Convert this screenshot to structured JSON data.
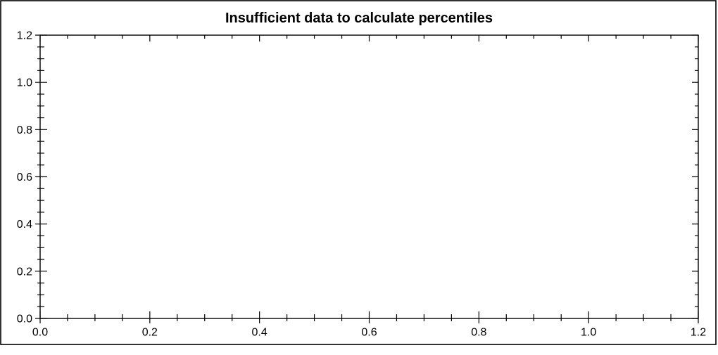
{
  "chart_data": {
    "type": "scatter",
    "title": "Insufficient data to calculate percentiles",
    "series": [],
    "xlabel": "",
    "ylabel": "",
    "xlim": [
      0.0,
      1.2
    ],
    "ylim": [
      0.0,
      1.2
    ],
    "x_major_ticks": [
      0.0,
      0.2,
      0.4,
      0.6,
      0.8,
      1.0,
      1.2
    ],
    "y_major_ticks": [
      0.0,
      0.2,
      0.4,
      0.6,
      0.8,
      1.0,
      1.2
    ],
    "x_tick_labels": [
      "0.0",
      "0.2",
      "0.4",
      "0.6",
      "0.8",
      "1.0",
      "1.2"
    ],
    "y_tick_labels": [
      "0.0",
      "0.2",
      "0.4",
      "0.6",
      "0.8",
      "1.0",
      "1.2"
    ],
    "minor_tick_step": 0.05,
    "grid": false,
    "legend": null,
    "frame": "closed-box",
    "tick_style": {
      "left_bottom": "crossing",
      "top_right": "inward"
    },
    "colors": {
      "background": "#ffffff",
      "axis": "#000000",
      "text": "#000000",
      "border": "#000000"
    }
  }
}
